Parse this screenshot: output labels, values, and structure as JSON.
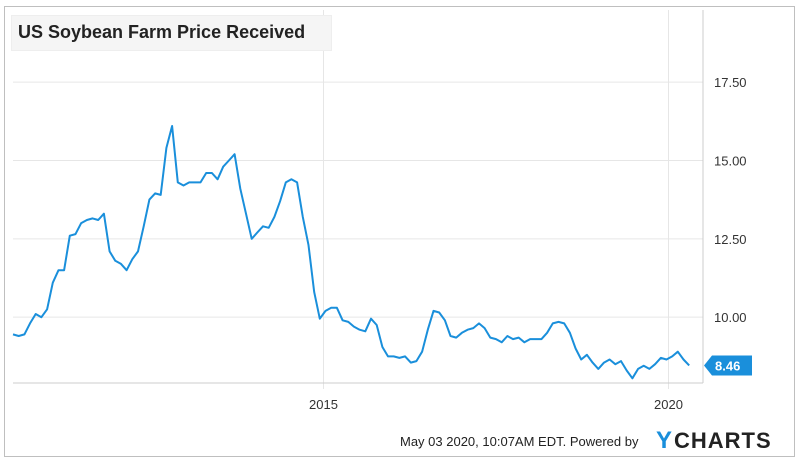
{
  "chart_data": {
    "type": "line",
    "title": "US Soybean Farm Price Received",
    "xlabel": "",
    "ylabel": "",
    "x_ticks": [
      "2015",
      "2020"
    ],
    "y_ticks": [
      "10.00",
      "12.50",
      "15.00",
      "17.50"
    ],
    "ylim": [
      7.9,
      19.8
    ],
    "grid": true,
    "line_color": "#1a8fdb",
    "last_value_label": "8.46",
    "series": [
      {
        "values": [
          9.45,
          9.4,
          9.45,
          9.8,
          10.1,
          10.0,
          10.25,
          11.1,
          11.5,
          11.5,
          12.6,
          12.65,
          13.0,
          13.1,
          13.15,
          13.1,
          13.3,
          12.1,
          11.8,
          11.7,
          11.5,
          11.85,
          12.1,
          12.9,
          13.75,
          13.95,
          13.9,
          15.4,
          16.1,
          14.3,
          14.2,
          14.3,
          14.3,
          14.3,
          14.6,
          14.6,
          14.4,
          14.8,
          15.0,
          15.2,
          14.1,
          13.3,
          12.5,
          12.7,
          12.9,
          12.85,
          13.2,
          13.7,
          14.3,
          14.4,
          14.3,
          13.2,
          12.3,
          10.8,
          9.95,
          10.2,
          10.3,
          10.3,
          9.9,
          9.85,
          9.7,
          9.6,
          9.55,
          9.95,
          9.75,
          9.05,
          8.75,
          8.75,
          8.7,
          8.75,
          8.55,
          8.6,
          8.9,
          9.6,
          10.2,
          10.15,
          9.9,
          9.4,
          9.35,
          9.5,
          9.6,
          9.65,
          9.8,
          9.65,
          9.35,
          9.3,
          9.2,
          9.4,
          9.3,
          9.35,
          9.2,
          9.3,
          9.3,
          9.3,
          9.5,
          9.8,
          9.85,
          9.8,
          9.5,
          9.0,
          8.65,
          8.8,
          8.55,
          8.35,
          8.55,
          8.65,
          8.5,
          8.6,
          8.3,
          8.05,
          8.35,
          8.45,
          8.35,
          8.5,
          8.7,
          8.65,
          8.75,
          8.9,
          8.65,
          8.46
        ]
      }
    ]
  },
  "footer": {
    "timestamp": "May 03 2020, 10:07AM EDT.",
    "powered_by": "Powered by",
    "brand_y": "Y",
    "brand_rest": "CHARTS"
  }
}
